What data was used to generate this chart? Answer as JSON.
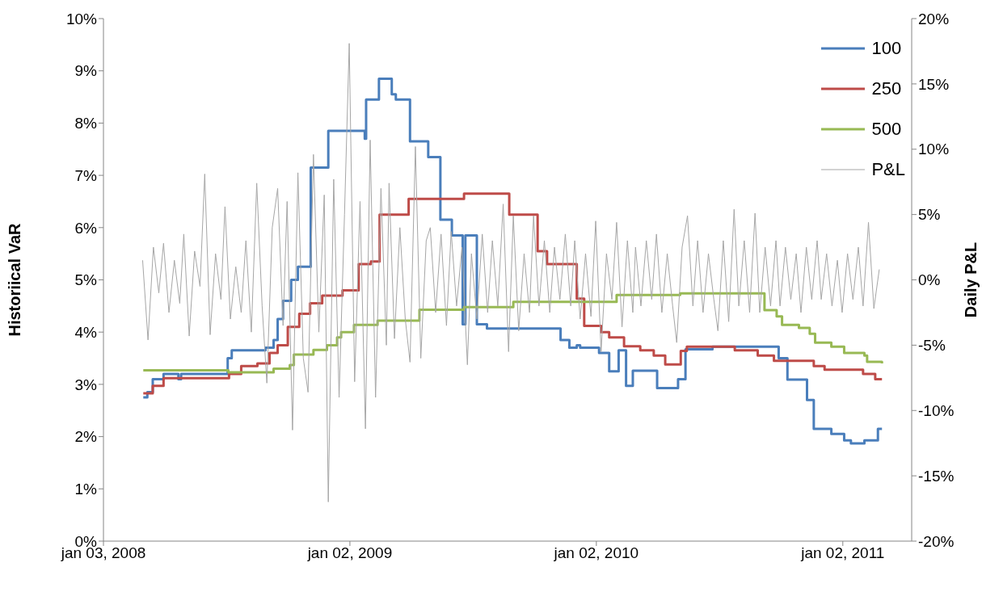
{
  "chart_data": {
    "type": "step",
    "ylabel": "Historiical VaR",
    "y2label": "Daily P&L",
    "xlim": [
      "2008-01-03",
      "2011-04-14"
    ],
    "xticks": [
      {
        "value": "2008-01-03",
        "label": "jan 03, 2008"
      },
      {
        "value": "2009-01-02",
        "label": "jan 02, 2009"
      },
      {
        "value": "2010-01-02",
        "label": "jan 02, 2010"
      },
      {
        "value": "2011-01-02",
        "label": "jan 02, 2011"
      }
    ],
    "ylim": [
      0,
      10
    ],
    "yticks": [
      {
        "value": 0,
        "label": "0%"
      },
      {
        "value": 1,
        "label": "1%"
      },
      {
        "value": 2,
        "label": "2%"
      },
      {
        "value": 3,
        "label": "3%"
      },
      {
        "value": 4,
        "label": "4%"
      },
      {
        "value": 5,
        "label": "5%"
      },
      {
        "value": 6,
        "label": "6%"
      },
      {
        "value": 7,
        "label": "7%"
      },
      {
        "value": 8,
        "label": "8%"
      },
      {
        "value": 9,
        "label": "9%"
      },
      {
        "value": 10,
        "label": "10%"
      }
    ],
    "y2lim": [
      -20,
      20
    ],
    "y2ticks": [
      {
        "value": -20,
        "label": "-20%"
      },
      {
        "value": -15,
        "label": "-15%"
      },
      {
        "value": -10,
        "label": "-10%"
      },
      {
        "value": -5,
        "label": "-5%"
      },
      {
        "value": 0,
        "label": "0%"
      },
      {
        "value": 5,
        "label": "5%"
      },
      {
        "value": 10,
        "label": "10%"
      },
      {
        "value": 15,
        "label": "15%"
      },
      {
        "value": 20,
        "label": "20%"
      }
    ],
    "legend": "top right",
    "grid": false,
    "series": [
      {
        "name": "100",
        "color": "#4a7ebb",
        "x": [
          "2008-03-02",
          "2008-03-08",
          "2008-03-16",
          "2008-04-01",
          "2008-04-23",
          "2008-04-27",
          "2008-07-05",
          "2008-07-11",
          "2008-08-30",
          "2008-09-11",
          "2008-09-17",
          "2008-09-25",
          "2008-10-07",
          "2008-10-17",
          "2008-11-05",
          "2008-12-01",
          "2009-01-24",
          "2009-01-26",
          "2009-02-14",
          "2009-03-05",
          "2009-03-11",
          "2009-04-01",
          "2009-04-28",
          "2009-05-16",
          "2009-06-02",
          "2009-06-18",
          "2009-06-22",
          "2009-07-09",
          "2009-07-24",
          "2009-11-10",
          "2009-11-23",
          "2009-12-04",
          "2009-12-09",
          "2010-01-06",
          "2010-01-21",
          "2010-02-04",
          "2010-02-15",
          "2010-02-25",
          "2010-04-02",
          "2010-05-03",
          "2010-05-14",
          "2010-06-23",
          "2010-09-29",
          "2010-10-12",
          "2010-11-10",
          "2010-11-20",
          "2010-12-16",
          "2011-01-04",
          "2011-01-14",
          "2011-02-03",
          "2011-02-23",
          "2011-03-01"
        ],
        "values": [
          2.75,
          2.85,
          3.1,
          3.2,
          3.1,
          3.2,
          3.5,
          3.65,
          3.7,
          3.85,
          4.25,
          4.6,
          5.0,
          5.25,
          7.15,
          7.85,
          7.7,
          8.45,
          8.85,
          8.55,
          8.45,
          7.65,
          7.35,
          6.15,
          5.85,
          4.15,
          5.85,
          4.15,
          4.07,
          3.85,
          3.7,
          3.75,
          3.7,
          3.6,
          3.25,
          3.65,
          2.97,
          3.26,
          2.93,
          3.1,
          3.67,
          3.72,
          3.5,
          3.09,
          2.7,
          2.15,
          2.05,
          1.93,
          1.87,
          1.93,
          2.15,
          2.15
        ]
      },
      {
        "name": "250",
        "color": "#be4b48",
        "x": [
          "2008-03-02",
          "2008-03-16",
          "2008-04-01",
          "2008-07-07",
          "2008-07-25",
          "2008-08-18",
          "2008-09-05",
          "2008-09-17",
          "2008-10-02",
          "2008-10-19",
          "2008-11-04",
          "2008-11-22",
          "2008-12-22",
          "2009-01-15",
          "2009-02-02",
          "2009-02-15",
          "2009-03-30",
          "2009-06-20",
          "2009-08-26",
          "2009-10-07",
          "2009-10-21",
          "2009-12-04",
          "2009-12-15",
          "2010-01-09",
          "2010-01-21",
          "2010-02-12",
          "2010-03-08",
          "2010-03-28",
          "2010-04-14",
          "2010-05-07",
          "2010-05-16",
          "2010-07-26",
          "2010-08-29",
          "2010-09-22",
          "2010-11-20",
          "2010-12-06",
          "2011-02-01",
          "2011-02-19",
          "2011-03-01"
        ],
        "values": [
          2.83,
          2.97,
          3.12,
          3.2,
          3.35,
          3.4,
          3.6,
          3.75,
          4.1,
          4.35,
          4.55,
          4.7,
          4.8,
          5.3,
          5.35,
          6.25,
          6.55,
          6.65,
          6.25,
          5.55,
          5.3,
          4.64,
          4.12,
          4.0,
          3.9,
          3.73,
          3.65,
          3.55,
          3.38,
          3.64,
          3.72,
          3.65,
          3.55,
          3.45,
          3.35,
          3.28,
          3.2,
          3.1,
          3.1
        ]
      },
      {
        "name": "500",
        "color": "#98b954",
        "x": [
          "2008-03-02",
          "2008-07-06",
          "2008-09-11",
          "2008-10-05",
          "2008-10-11",
          "2008-11-09",
          "2008-11-29",
          "2008-12-14",
          "2008-12-20",
          "2009-01-08",
          "2009-02-12",
          "2009-04-15",
          "2009-06-20",
          "2009-09-01",
          "2010-02-01",
          "2010-05-06",
          "2010-09-08",
          "2010-09-26",
          "2010-10-04",
          "2010-10-29",
          "2010-11-14",
          "2010-11-22",
          "2010-12-16",
          "2011-01-04",
          "2011-02-03",
          "2011-02-07",
          "2011-03-01"
        ],
        "values": [
          3.27,
          3.23,
          3.3,
          3.37,
          3.57,
          3.66,
          3.75,
          3.9,
          4.0,
          4.14,
          4.22,
          4.43,
          4.48,
          4.58,
          4.71,
          4.74,
          4.42,
          4.3,
          4.14,
          4.08,
          3.97,
          3.8,
          3.72,
          3.6,
          3.55,
          3.43,
          3.4
        ]
      },
      {
        "name": "P&L",
        "type": "line",
        "axis": "y2",
        "color": "#a6a6a6",
        "x": [
          "2008-03-01",
          "2008-03-09",
          "2008-03-17",
          "2008-03-25",
          "2008-04-01",
          "2008-04-09",
          "2008-04-17",
          "2008-04-25",
          "2008-05-01",
          "2008-05-09",
          "2008-05-17",
          "2008-05-25",
          "2008-06-01",
          "2008-06-09",
          "2008-06-17",
          "2008-06-25",
          "2008-07-01",
          "2008-07-09",
          "2008-07-17",
          "2008-07-25",
          "2008-08-01",
          "2008-08-09",
          "2008-08-17",
          "2008-08-25",
          "2008-09-01",
          "2008-09-09",
          "2008-09-17",
          "2008-09-25",
          "2008-10-01",
          "2008-10-09",
          "2008-10-17",
          "2008-10-25",
          "2008-11-01",
          "2008-11-09",
          "2008-11-17",
          "2008-11-25",
          "2008-12-01",
          "2008-12-09",
          "2008-12-17",
          "2008-12-25",
          "2009-01-01",
          "2009-01-09",
          "2009-01-17",
          "2009-01-25",
          "2009-02-01",
          "2009-02-09",
          "2009-02-17",
          "2009-02-25",
          "2009-03-01",
          "2009-03-09",
          "2009-03-17",
          "2009-03-25",
          "2009-04-01",
          "2009-04-09",
          "2009-04-17",
          "2009-04-25",
          "2009-05-01",
          "2009-05-09",
          "2009-05-17",
          "2009-05-25",
          "2009-06-01",
          "2009-06-09",
          "2009-06-17",
          "2009-06-25",
          "2009-07-01",
          "2009-07-09",
          "2009-07-17",
          "2009-07-25",
          "2009-08-01",
          "2009-08-09",
          "2009-08-17",
          "2009-08-25",
          "2009-09-01",
          "2009-09-09",
          "2009-09-17",
          "2009-09-25",
          "2009-10-01",
          "2009-10-09",
          "2009-10-17",
          "2009-10-25",
          "2009-11-01",
          "2009-11-09",
          "2009-11-17",
          "2009-11-25",
          "2009-12-01",
          "2009-12-09",
          "2009-12-17",
          "2009-12-25",
          "2010-01-01",
          "2010-01-09",
          "2010-01-17",
          "2010-01-25",
          "2010-02-01",
          "2010-02-09",
          "2010-02-17",
          "2010-02-25",
          "2010-03-01",
          "2010-03-09",
          "2010-03-17",
          "2010-03-25",
          "2010-04-01",
          "2010-04-09",
          "2010-04-17",
          "2010-04-25",
          "2010-05-01",
          "2010-05-09",
          "2010-05-17",
          "2010-05-25",
          "2010-06-01",
          "2010-06-09",
          "2010-06-17",
          "2010-06-25",
          "2010-07-01",
          "2010-07-09",
          "2010-07-17",
          "2010-07-25",
          "2010-08-01",
          "2010-08-09",
          "2010-08-17",
          "2010-08-25",
          "2010-09-01",
          "2010-09-09",
          "2010-09-17",
          "2010-09-25",
          "2010-10-01",
          "2010-10-09",
          "2010-10-17",
          "2010-10-25",
          "2010-11-01",
          "2010-11-09",
          "2010-11-17",
          "2010-11-25",
          "2010-12-01",
          "2010-12-09",
          "2010-12-17",
          "2010-12-25",
          "2011-01-01",
          "2011-01-09",
          "2011-01-17",
          "2011-01-25",
          "2011-02-01",
          "2011-02-09",
          "2011-02-17",
          "2011-02-25"
        ],
        "values": [
          1.5,
          -4.6,
          2.5,
          -1.0,
          2.8,
          -2.5,
          1.5,
          -1.8,
          3.5,
          -4.3,
          2.2,
          -0.5,
          8.1,
          -4.2,
          2.0,
          -1.5,
          5.6,
          -3.0,
          1.0,
          -2.5,
          3.0,
          -4.0,
          7.4,
          -2.0,
          -7.9,
          4.0,
          7.0,
          -3.5,
          6.0,
          -11.5,
          8.2,
          -6.0,
          -8.6,
          9.6,
          -4.0,
          6.5,
          -17.0,
          7.7,
          -9.0,
          5.0,
          18.1,
          -7.8,
          6.0,
          -11.4,
          10.7,
          -9.0,
          7.0,
          -5.0,
          7.4,
          -4.5,
          4.0,
          -3.0,
          -6.3,
          10.2,
          -6.0,
          3.0,
          4.0,
          -2.5,
          3.5,
          -3.5,
          3.7,
          -2.0,
          2.5,
          -6.5,
          2.0,
          -3.0,
          3.5,
          -2.5,
          3.0,
          -2.0,
          5.8,
          -5.5,
          4.9,
          -3.9,
          2.0,
          -2.5,
          4.9,
          -2.0,
          3.0,
          -2.5,
          2.5,
          -1.5,
          3.5,
          -2.0,
          3.0,
          -3.0,
          2.0,
          -2.8,
          4.5,
          -5.5,
          2.0,
          -1.5,
          4.4,
          -3.6,
          3.0,
          -2.5,
          2.5,
          -2.0,
          3.0,
          -1.5,
          3.5,
          -2.5,
          2.0,
          -2.0,
          -4.8,
          2.5,
          4.9,
          -2.0,
          3.0,
          -2.5,
          2.0,
          -1.5,
          -3.9,
          3.0,
          -3.2,
          5.4,
          -2.0,
          3.0,
          -2.5,
          5.1,
          -2.5,
          2.5,
          -2.0,
          3.0,
          -2.0,
          2.5,
          -1.5,
          2.0,
          -2.5,
          2.5,
          -1.5,
          3.0,
          -1.5,
          2.0,
          -2.0,
          1.5,
          -2.5,
          2.0,
          -1.5,
          2.5,
          -2.0,
          4.4,
          -2.2,
          0.8
        ]
      }
    ]
  }
}
